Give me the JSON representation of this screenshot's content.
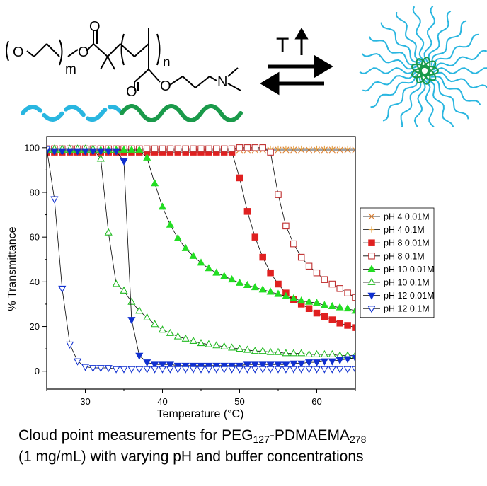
{
  "scheme": {
    "subscript_m": "m",
    "subscript_n": "n",
    "atom_O": "O",
    "atom_N": "N",
    "stimulus": "T",
    "colors": {
      "peg": "#29b6e0",
      "pdmaema": "#1a9a4a",
      "ink": "#000000"
    }
  },
  "caption": {
    "line1_prefix": "Cloud point measurements for PEG",
    "line1_sub1": "127",
    "line1_mid": "-PDMAEMA",
    "line1_sub2": "278",
    "line2": "(1 mg/mL) with varying pH and buffer concentrations"
  },
  "chart_data": {
    "type": "line",
    "xlabel": "Temperature (°C)",
    "ylabel": "% Transmittance",
    "xlim": [
      25,
      65
    ],
    "ylim": [
      -8,
      105
    ],
    "xticks": [
      30,
      40,
      50,
      60
    ],
    "yticks": [
      0,
      20,
      40,
      60,
      80,
      100
    ],
    "grid": false,
    "legend_position": "right",
    "series": [
      {
        "name": "pH 4 0.01M",
        "marker": "x",
        "color": "#e08030",
        "filled": false,
        "x": [
          25,
          26,
          27,
          28,
          29,
          30,
          31,
          32,
          33,
          34,
          35,
          36,
          37,
          38,
          39,
          40,
          41,
          42,
          43,
          44,
          45,
          46,
          47,
          48,
          49,
          50,
          51,
          52,
          53,
          54,
          55,
          56,
          57,
          58,
          59,
          60,
          61,
          62,
          63,
          64,
          65
        ],
        "y": [
          99,
          99,
          99,
          99,
          99,
          99,
          99,
          99,
          99,
          99,
          99,
          99,
          99,
          99,
          99,
          99,
          99,
          99,
          99,
          99,
          99,
          99,
          99,
          99,
          99,
          99,
          99,
          99,
          99,
          99,
          99,
          99,
          99,
          99,
          99,
          99,
          99,
          99,
          99,
          99,
          99
        ]
      },
      {
        "name": "pH 4 0.1M",
        "marker": "plus",
        "color": "#e0a040",
        "filled": false,
        "x": [
          25,
          26,
          27,
          28,
          29,
          30,
          31,
          32,
          33,
          34,
          35,
          36,
          37,
          38,
          39,
          40,
          41,
          42,
          43,
          44,
          45,
          46,
          47,
          48,
          49,
          50,
          51,
          52,
          53,
          54,
          55,
          56,
          57,
          58,
          59,
          60,
          61,
          62,
          63,
          64,
          65
        ],
        "y": [
          99.6,
          99.6,
          99.6,
          99.6,
          99.6,
          99.6,
          99.6,
          99.6,
          99.6,
          99.6,
          99.6,
          99.6,
          99.6,
          99.6,
          99.6,
          99.6,
          99.6,
          99.6,
          99.6,
          99.6,
          99.6,
          99.6,
          99.6,
          99.6,
          99.6,
          99.6,
          99.6,
          99.6,
          99.6,
          99.6,
          99.6,
          99.6,
          99.6,
          99.6,
          99.6,
          99.6,
          99.6,
          99.6,
          99.6,
          99.6,
          99.6
        ]
      },
      {
        "name": "pH 8 0.01M",
        "marker": "square",
        "color": "#e02020",
        "filled": true,
        "x": [
          25,
          26,
          27,
          28,
          29,
          30,
          31,
          32,
          33,
          34,
          35,
          36,
          37,
          38,
          39,
          40,
          41,
          42,
          43,
          44,
          45,
          46,
          47,
          48,
          49,
          50,
          51,
          52,
          53,
          54,
          55,
          56,
          57,
          58,
          59,
          60,
          61,
          62,
          63,
          64,
          65
        ],
        "y": [
          98,
          98,
          98,
          98,
          98,
          98,
          98,
          98,
          98,
          98,
          98,
          98,
          98,
          98,
          98,
          98,
          98,
          98,
          98,
          98,
          98,
          98,
          98,
          98,
          98,
          86.5,
          71.5,
          60,
          51,
          44,
          39,
          35,
          32,
          30,
          28,
          26,
          24.5,
          23,
          21.5,
          20.5,
          19.5
        ]
      },
      {
        "name": "pH 8 0.1M",
        "marker": "square",
        "color": "#c03030",
        "filled": false,
        "x": [
          25,
          26,
          27,
          28,
          29,
          30,
          31,
          32,
          33,
          34,
          35,
          36,
          37,
          38,
          39,
          40,
          41,
          42,
          43,
          44,
          45,
          46,
          47,
          48,
          49,
          50,
          51,
          52,
          53,
          54,
          55,
          56,
          57,
          58,
          59,
          60,
          61,
          62,
          63,
          64,
          65
        ],
        "y": [
          99.5,
          99.5,
          99.5,
          99.5,
          99.5,
          99.5,
          99.5,
          99.5,
          99.5,
          99.5,
          99.5,
          99.5,
          99.5,
          99.5,
          99.5,
          99.5,
          99.5,
          99.5,
          99.5,
          99.5,
          99.5,
          99.5,
          99.5,
          99.5,
          99.5,
          100,
          100,
          100,
          100,
          98,
          79,
          65,
          57,
          51,
          47,
          44,
          41,
          39,
          37,
          35,
          33
        ]
      },
      {
        "name": "pH 10 0.01M",
        "marker": "triangle-up",
        "color": "#22dd22",
        "filled": true,
        "x": [
          25,
          26,
          27,
          28,
          29,
          30,
          31,
          32,
          33,
          34,
          35,
          36,
          37,
          38,
          39,
          40,
          41,
          42,
          43,
          44,
          45,
          46,
          47,
          48,
          49,
          50,
          51,
          52,
          53,
          54,
          55,
          56,
          57,
          58,
          59,
          60,
          61,
          62,
          63,
          64,
          65
        ],
        "y": [
          99,
          99,
          99,
          99,
          99,
          99,
          99,
          99,
          99,
          99,
          99,
          99,
          99,
          95.5,
          84,
          73.5,
          65.5,
          59.5,
          55,
          51.5,
          48.5,
          46,
          44,
          42.5,
          41,
          39.5,
          38.5,
          37.5,
          36.5,
          35.5,
          34.5,
          33.5,
          32.5,
          31.5,
          31,
          30.5,
          29.5,
          29,
          28.5,
          28,
          27
        ]
      },
      {
        "name": "pH 10 0.1M",
        "marker": "triangle-up",
        "color": "#22bb22",
        "filled": false,
        "x": [
          25,
          26,
          27,
          28,
          29,
          30,
          31,
          32,
          33,
          34,
          35,
          36,
          37,
          38,
          39,
          40,
          41,
          42,
          43,
          44,
          45,
          46,
          47,
          48,
          49,
          50,
          51,
          52,
          53,
          54,
          55,
          56,
          57,
          58,
          59,
          60,
          61,
          62,
          63,
          64,
          65
        ],
        "y": [
          99.5,
          99.5,
          99.5,
          99.5,
          99.5,
          99.5,
          99.5,
          95,
          62,
          39,
          36,
          31,
          27,
          24,
          21,
          18.5,
          17,
          15.5,
          14.5,
          13.5,
          12.5,
          12,
          11.5,
          11,
          10.5,
          10,
          9.5,
          9,
          9,
          8.5,
          8.5,
          8,
          8,
          8,
          7.5,
          7.5,
          7.5,
          7.5,
          7,
          7,
          7
        ]
      },
      {
        "name": "pH 12 0.01M",
        "marker": "triangle-down",
        "color": "#1030d0",
        "filled": true,
        "x": [
          25,
          26,
          27,
          28,
          29,
          30,
          31,
          32,
          33,
          34,
          35,
          36,
          37,
          38,
          39,
          40,
          41,
          42,
          43,
          44,
          45,
          46,
          47,
          48,
          49,
          50,
          51,
          52,
          53,
          54,
          55,
          56,
          57,
          58,
          59,
          60,
          61,
          62,
          63,
          64,
          65
        ],
        "y": [
          98.5,
          98.5,
          98.5,
          98.5,
          98.5,
          98.5,
          98.5,
          98.5,
          98.5,
          98.5,
          94,
          23,
          7,
          4,
          3,
          3,
          3,
          2.5,
          2.5,
          2.5,
          2.5,
          2.5,
          2.5,
          2.5,
          2.5,
          2.5,
          3,
          3,
          3,
          3,
          3,
          3,
          3.5,
          3.5,
          4,
          4,
          4.5,
          4.5,
          5,
          5.5,
          6
        ]
      },
      {
        "name": "pH 12 0.1M",
        "marker": "triangle-down",
        "color": "#1030d0",
        "filled": false,
        "x": [
          25,
          26,
          27,
          28,
          29,
          30,
          31,
          32,
          33,
          34,
          35,
          36,
          37,
          38,
          39,
          40,
          41,
          42,
          43,
          44,
          45,
          46,
          47,
          48,
          49,
          50,
          51,
          52,
          53,
          54,
          55,
          56,
          57,
          58,
          59,
          60,
          61,
          62,
          63,
          64,
          65
        ],
        "y": [
          99.5,
          77,
          37,
          12,
          4.5,
          2,
          1.5,
          1.5,
          1.5,
          1,
          1,
          1,
          1,
          1,
          1,
          1,
          1,
          1,
          1,
          1,
          1,
          1,
          1,
          1,
          1,
          1,
          1,
          1,
          1,
          1,
          1,
          1,
          1,
          1,
          1,
          1,
          1,
          1,
          1,
          1,
          1
        ]
      }
    ]
  }
}
